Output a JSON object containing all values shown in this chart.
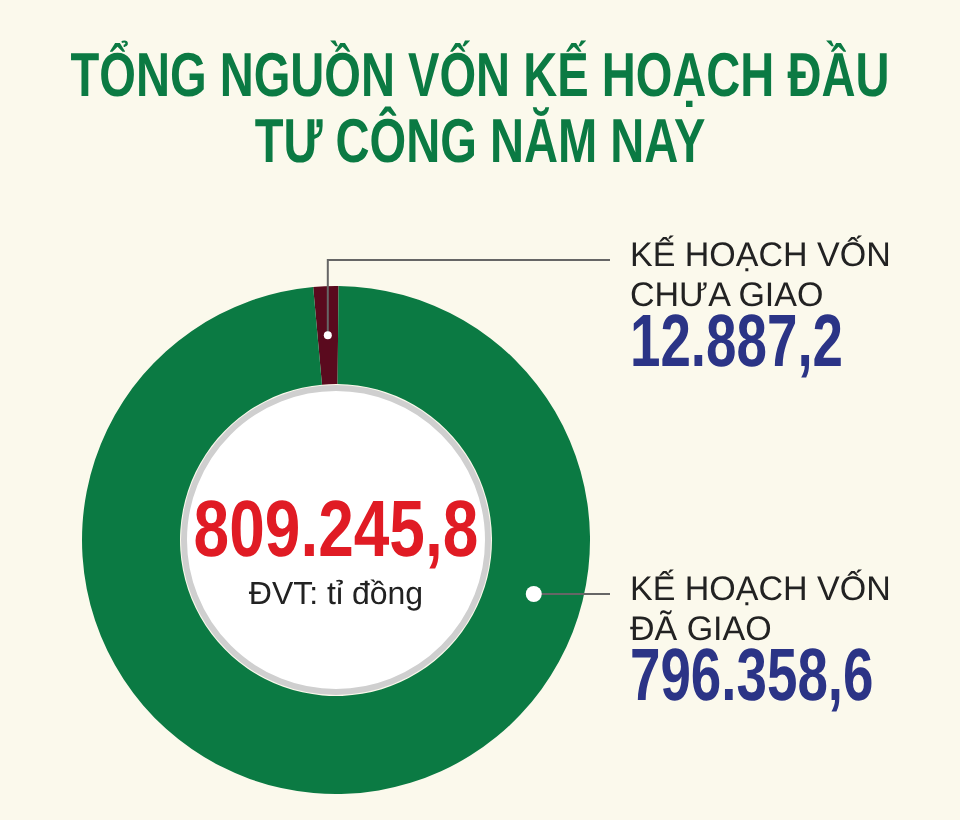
{
  "chart_data": {
    "type": "donut",
    "title": "TỔNG NGUỒN VỐN KẾ HOẠCH ĐẦU TƯ CÔNG NĂM NAY",
    "categories": [
      "KẾ HOẠCH VỐN CHƯA GIAO",
      "KẾ HOẠCH VỐN ĐÃ GIAO"
    ],
    "values": [
      12887.2,
      796358.6
    ],
    "colors": [
      "#5a0a1e",
      "#0b7a43"
    ],
    "value_labels": [
      "12.887,2",
      "796.358,6"
    ],
    "annotations": [
      "809.245,8",
      "ĐVT: tỉ đồng"
    ]
  }
}
